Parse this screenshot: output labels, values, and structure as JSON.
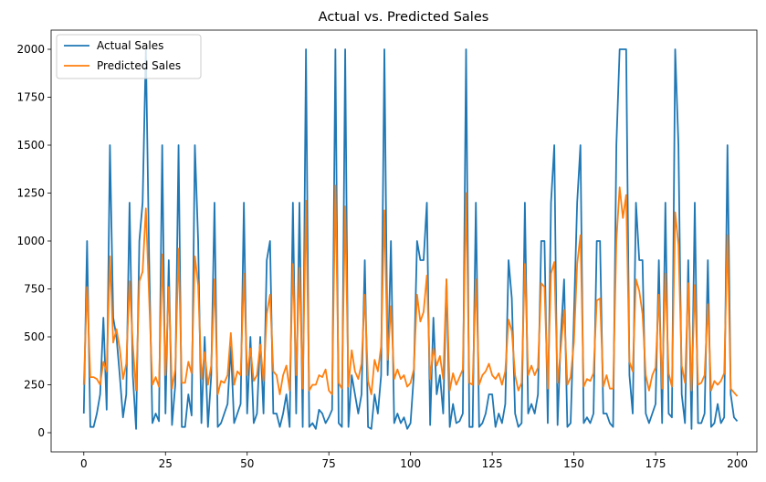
{
  "chart_data": {
    "type": "line",
    "title": "Actual vs. Predicted Sales",
    "xlabel": "",
    "ylabel": "",
    "xlim": [
      -10,
      206
    ],
    "ylim": [
      -100,
      2100
    ],
    "xticks": [
      0,
      25,
      50,
      75,
      100,
      125,
      150,
      175,
      200
    ],
    "yticks": [
      0,
      250,
      500,
      750,
      1000,
      1250,
      1500,
      1750,
      2000
    ],
    "grid": false,
    "legend": "top-left",
    "series": [
      {
        "name": "Actual Sales",
        "color": "#1f77b4",
        "values": [
          100,
          1000,
          30,
          30,
          100,
          200,
          600,
          120,
          1500,
          600,
          500,
          300,
          80,
          200,
          1200,
          300,
          20,
          1000,
          1200,
          2000,
          900,
          50,
          100,
          60,
          1500,
          100,
          900,
          40,
          250,
          1500,
          30,
          30,
          200,
          90,
          1500,
          1000,
          50,
          500,
          30,
          300,
          1200,
          30,
          50,
          100,
          150,
          450,
          50,
          100,
          150,
          1200,
          100,
          500,
          50,
          100,
          500,
          100,
          900,
          1000,
          100,
          100,
          30,
          100,
          200,
          30,
          1200,
          100,
          1200,
          30,
          2000,
          30,
          50,
          20,
          120,
          100,
          50,
          80,
          120,
          2000,
          50,
          30,
          2000,
          30,
          300,
          200,
          100,
          200,
          900,
          30,
          20,
          200,
          100,
          300,
          2000,
          300,
          1000,
          50,
          100,
          50,
          80,
          20,
          50,
          300,
          1000,
          900,
          900,
          1200,
          40,
          600,
          200,
          300,
          100,
          800,
          30,
          150,
          50,
          60,
          100,
          2000,
          30,
          30,
          1200,
          30,
          50,
          100,
          200,
          200,
          30,
          100,
          50,
          150,
          900,
          700,
          100,
          30,
          50,
          1200,
          100,
          150,
          100,
          200,
          1000,
          1000,
          50,
          1200,
          1500,
          40,
          500,
          800,
          30,
          50,
          600,
          1200,
          1500,
          50,
          80,
          50,
          100,
          1000,
          1000,
          100,
          100,
          50,
          30,
          1500,
          2000,
          2000,
          2000,
          300,
          100,
          1200,
          900,
          900,
          100,
          50,
          100,
          150,
          900,
          50,
          1200,
          100,
          80,
          2000,
          1500,
          200,
          50,
          900,
          20,
          1200,
          50,
          50,
          100,
          900,
          30,
          50,
          150,
          50,
          80,
          1500,
          200,
          80,
          60
        ]
      },
      {
        "name": "Predicted Sales",
        "color": "#ff7f0e",
        "values": [
          250,
          760,
          290,
          290,
          280,
          250,
          370,
          320,
          920,
          470,
          540,
          440,
          280,
          360,
          790,
          460,
          220,
          790,
          840,
          1170,
          700,
          250,
          290,
          240,
          930,
          300,
          760,
          230,
          330,
          960,
          260,
          260,
          370,
          310,
          920,
          770,
          280,
          420,
          250,
          350,
          800,
          200,
          270,
          260,
          300,
          520,
          250,
          320,
          300,
          830,
          300,
          440,
          270,
          300,
          460,
          270,
          620,
          720,
          320,
          300,
          200,
          300,
          350,
          220,
          880,
          300,
          860,
          230,
          1210,
          220,
          250,
          250,
          300,
          290,
          330,
          220,
          200,
          1290,
          260,
          230,
          1180,
          240,
          430,
          320,
          280,
          360,
          720,
          270,
          200,
          380,
          320,
          450,
          1160,
          380,
          660,
          280,
          330,
          280,
          300,
          240,
          260,
          330,
          720,
          580,
          630,
          820,
          280,
          440,
          350,
          400,
          280,
          800,
          220,
          310,
          250,
          290,
          330,
          1250,
          260,
          250,
          800,
          250,
          300,
          320,
          360,
          300,
          280,
          310,
          250,
          320,
          590,
          530,
          300,
          220,
          260,
          880,
          300,
          350,
          300,
          340,
          780,
          760,
          230,
          830,
          890,
          260,
          440,
          640,
          250,
          290,
          470,
          880,
          1030,
          240,
          280,
          270,
          310,
          690,
          700,
          240,
          300,
          230,
          230,
          1000,
          1280,
          1120,
          1240,
          370,
          320,
          800,
          740,
          620,
          300,
          220,
          300,
          340,
          720,
          230,
          830,
          310,
          240,
          1150,
          980,
          350,
          260,
          780,
          220,
          770,
          250,
          260,
          300,
          670,
          220,
          270,
          250,
          270,
          310,
          1030,
          230,
          210,
          190
        ]
      }
    ]
  }
}
